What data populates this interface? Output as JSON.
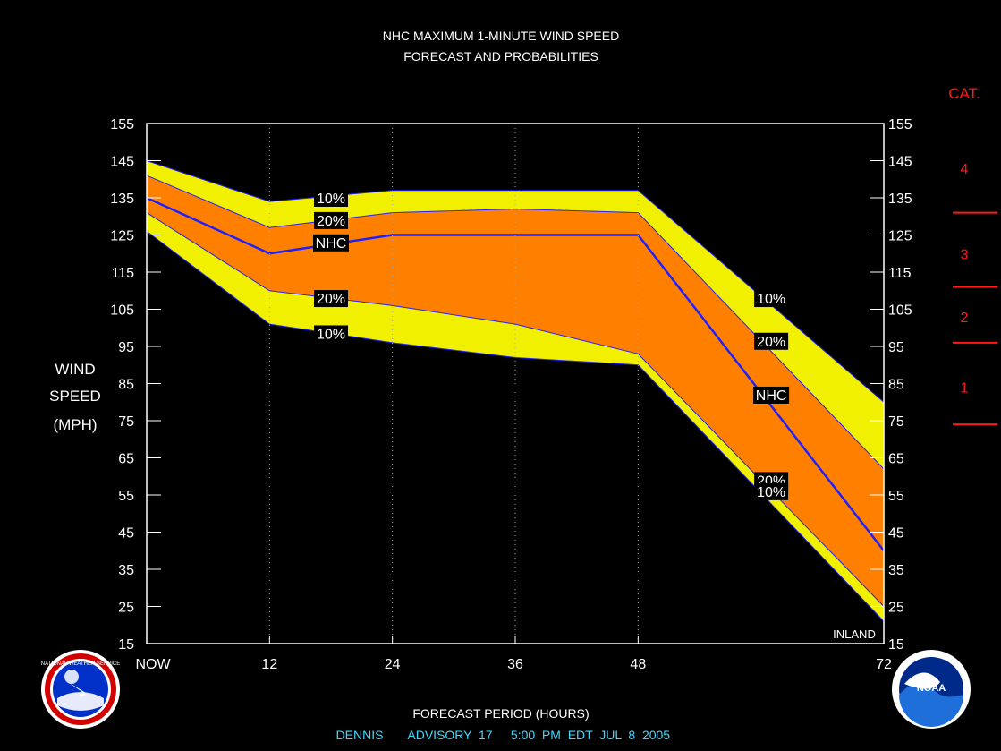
{
  "chart_data": {
    "type": "area",
    "title": "NHC MAXIMUM 1-MINUTE WIND SPEED",
    "subtitle": "FORECAST AND PROBABILITIES",
    "ylabel": [
      "WIND",
      "SPEED",
      "(MPH)"
    ],
    "xlabel": "FORECAST PERIOD (HOURS)",
    "footer": {
      "storm": "DENNIS",
      "advisory": "ADVISORY  17",
      "time": "5:00  PM  EDT  JUL  8  2005"
    },
    "xlim": [
      0,
      72
    ],
    "ylim": [
      15,
      155
    ],
    "x_ticks": [
      {
        "value": 0,
        "label": "NOW"
      },
      {
        "value": 12,
        "label": "12"
      },
      {
        "value": 24,
        "label": "24"
      },
      {
        "value": 36,
        "label": "36"
      },
      {
        "value": 48,
        "label": "48"
      },
      {
        "value": 72,
        "label": "72"
      }
    ],
    "y_ticks": [
      15,
      25,
      35,
      45,
      55,
      65,
      75,
      85,
      95,
      105,
      115,
      125,
      135,
      145,
      155
    ],
    "x": [
      0,
      12,
      24,
      36,
      48,
      72
    ],
    "series": [
      {
        "name": "10%",
        "role": "upper",
        "values": [
          145,
          134,
          137,
          137,
          137,
          80
        ]
      },
      {
        "name": "20%",
        "role": "upper",
        "values": [
          141,
          127,
          131,
          132,
          131,
          62
        ]
      },
      {
        "name": "NHC",
        "role": "forecast",
        "values": [
          135,
          120,
          125,
          125,
          125,
          40
        ]
      },
      {
        "name": "20%",
        "role": "lower",
        "values": [
          131,
          110,
          106,
          101,
          93,
          25
        ]
      },
      {
        "name": "10%",
        "role": "lower",
        "values": [
          126,
          101,
          96,
          92,
          90,
          21
        ]
      }
    ],
    "band_labels": [
      {
        "text": "10%",
        "x": 18,
        "y": 135
      },
      {
        "text": "20%",
        "x": 18,
        "y": 129
      },
      {
        "text": "NHC",
        "x": 18,
        "y": 123
      },
      {
        "text": "20%",
        "x": 18,
        "y": 108
      },
      {
        "text": "10%",
        "x": 18,
        "y": 98.5
      },
      {
        "text": "10%",
        "x": 61,
        "y": 108
      },
      {
        "text": "20%",
        "x": 61,
        "y": 96.5
      },
      {
        "text": "NHC",
        "x": 61,
        "y": 82
      },
      {
        "text": "20%",
        "x": 61,
        "y": 59
      },
      {
        "text": "10%",
        "x": 61,
        "y": 56
      }
    ],
    "annotation": "INLAND",
    "category_scale": {
      "title": "CAT.",
      "categories": [
        {
          "label": "4",
          "y": 143
        },
        {
          "label": "3",
          "y": 120
        },
        {
          "label": "2",
          "y": 103
        },
        {
          "label": "1",
          "y": 84
        }
      ],
      "boundaries": [
        131,
        111,
        96,
        74
      ]
    },
    "colors": {
      "background": "#000000",
      "outer_band": "#f0f000",
      "inner_band": "#ff8000",
      "forecast_line": "#2020ff",
      "text": "#ffffff",
      "footer_text": "#40d8ff",
      "category": "#ff1a1a"
    },
    "logos": {
      "left": "NATIONAL WEATHER SERVICE",
      "right": "NOAA"
    }
  }
}
